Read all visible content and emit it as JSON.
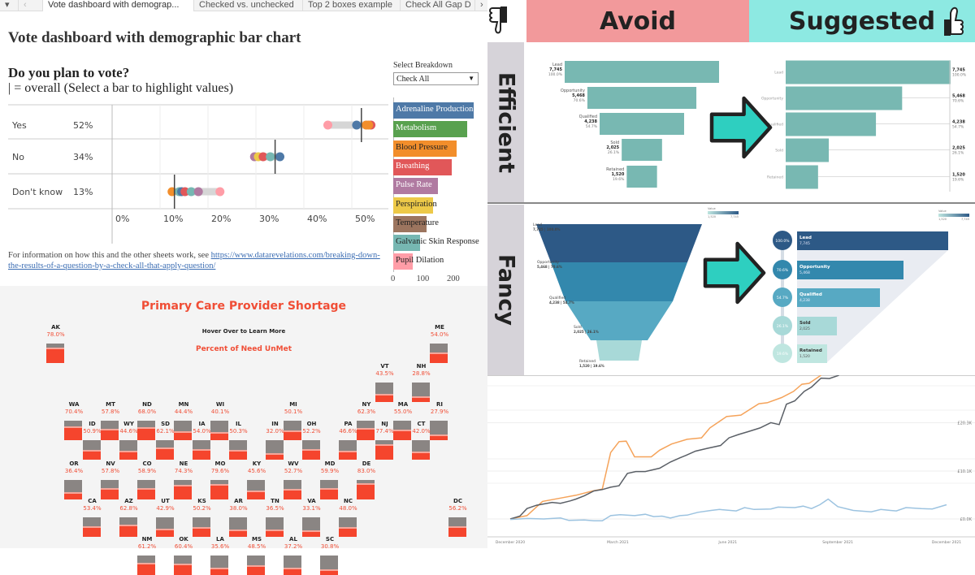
{
  "tabs": {
    "items": [
      "Vote dashboard with demograp...",
      "Checked vs. unchecked",
      "Top 2 boxes example",
      "Check All Gap D"
    ],
    "active": 0
  },
  "dashboard": {
    "title": "Vote dashboard with demographic bar chart",
    "question": "Do you plan to vote?",
    "subtitle": "| = overall (Select a bar to highlight values)",
    "select_label": "Select Breakdown",
    "select_value": "Check All",
    "footnote_text": "For information on how this and the other sheets work, see ",
    "footnote_link": "https://www.datarevelations.com/breaking-down-the-results-of-a-question-by-a-check-all-that-apply-question/"
  },
  "chart_data": [
    {
      "type": "scatter",
      "title": "Do you plan to vote?",
      "x_ticks": [
        "0%",
        "10%",
        "20%",
        "30%",
        "40%",
        "50%"
      ],
      "xlim": [
        0,
        57
      ],
      "categories": [
        "Yes",
        "No",
        "Don't know"
      ],
      "overall_labels": [
        "52%",
        "34%",
        "13%"
      ],
      "overall": [
        52,
        34,
        13
      ],
      "points": [
        [
          {
            "c": "#ff9da7",
            "v": 45
          },
          {
            "c": "#4e79a7",
            "v": 51
          },
          {
            "c": "#f28e2b",
            "v": 53
          },
          {
            "c": "#e15759",
            "v": 54
          },
          {
            "c": "#f28e2b",
            "v": 53.5
          }
        ],
        [
          {
            "c": "#b07aa1",
            "v": 29.7
          },
          {
            "c": "#edc948",
            "v": 30.5
          },
          {
            "c": "#e15759",
            "v": 31.5
          },
          {
            "c": "#76b7b2",
            "v": 33
          },
          {
            "c": "#4e79a7",
            "v": 35
          }
        ],
        [
          {
            "c": "#f28e2b",
            "v": 12.5
          },
          {
            "c": "#76b7b2",
            "v": 14
          },
          {
            "c": "#4e79a7",
            "v": 14.5
          },
          {
            "c": "#e15759",
            "v": 15.2
          },
          {
            "c": "#76b7b2",
            "v": 16.5
          },
          {
            "c": "#b07aa1",
            "v": 18
          },
          {
            "c": "#ff9da7",
            "v": 22.5
          }
        ]
      ]
    },
    {
      "type": "bar",
      "orientation": "horizontal",
      "categories": [
        "Adrenaline Production",
        "Metabolism",
        "Blood Pressure",
        "Breathing",
        "Pulse Rate",
        "Perspiration",
        "Temperature",
        "Galvanic Skin Response",
        "Pupil Dilation"
      ],
      "values": [
        265,
        243,
        208,
        192,
        147,
        130,
        110,
        88,
        65
      ],
      "colors": [
        "#4e79a7",
        "#59a14f",
        "#f28e2b",
        "#e15759",
        "#b07aa1",
        "#edc948",
        "#9c755f",
        "#76b7b2",
        "#ff9da7"
      ],
      "label_colors": [
        "#fff",
        "#fff",
        "#222",
        "#fff",
        "#fff",
        "#222",
        "#222",
        "#222",
        "#222"
      ],
      "x_ticks": [
        "0",
        "100",
        "200"
      ],
      "xlim": [
        0,
        300
      ]
    },
    {
      "type": "line",
      "y_ticks": [
        "£0.0K",
        "£10.1K",
        "£20.3K"
      ],
      "y_tick_values": [
        0,
        10.1,
        20.3
      ],
      "x_ticks": [
        "December 2020",
        "March 2021",
        "June 2021",
        "September 2021",
        "December 2021"
      ],
      "x_tick_dates": [
        "2020-12-01",
        "2021-03-01",
        "2021-06-01",
        "2021-09-01",
        "2021-12-01"
      ],
      "ylim": [
        -1,
        30
      ],
      "series": [
        {
          "color": "#f5a35a",
          "points": [
            [
              "2020-12-01",
              0
            ],
            [
              "2020-12-15",
              0.7
            ],
            [
              "2020-12-28",
              3.7
            ],
            [
              "2021-01-12",
              4.4
            ],
            [
              "2021-01-25",
              5.0
            ],
            [
              "2021-02-08",
              5.9
            ],
            [
              "2021-02-16",
              6.3
            ],
            [
              "2021-02-23",
              14.0
            ],
            [
              "2021-03-02",
              16.3
            ],
            [
              "2021-03-08",
              16.4
            ],
            [
              "2021-03-15",
              13.1
            ],
            [
              "2021-03-29",
              13.1
            ],
            [
              "2021-04-05",
              14.5
            ],
            [
              "2021-04-15",
              15.8
            ],
            [
              "2021-04-28",
              16.8
            ],
            [
              "2021-05-10",
              17.1
            ],
            [
              "2021-05-17",
              19.2
            ],
            [
              "2021-05-31",
              21.6
            ],
            [
              "2021-06-12",
              21.9
            ],
            [
              "2021-06-27",
              24.3
            ],
            [
              "2021-07-04",
              24.5
            ],
            [
              "2021-07-16",
              25.6
            ],
            [
              "2021-07-26",
              26.9
            ],
            [
              "2021-08-02",
              28.4
            ],
            [
              "2021-08-08",
              28.6
            ],
            [
              "2021-08-18",
              30.6
            ]
          ]
        },
        {
          "color": "#5a5f66",
          "points": [
            [
              "2020-12-01",
              0
            ],
            [
              "2020-12-09",
              0.6
            ],
            [
              "2020-12-15",
              2.2
            ],
            [
              "2020-12-23",
              2.9
            ],
            [
              "2021-01-05",
              3.5
            ],
            [
              "2021-01-12",
              3.3
            ],
            [
              "2021-01-20",
              3.8
            ],
            [
              "2021-01-25",
              4.2
            ],
            [
              "2021-02-01",
              4.9
            ],
            [
              "2021-02-09",
              5.9
            ],
            [
              "2021-02-16",
              6.2
            ],
            [
              "2021-02-23",
              6.7
            ],
            [
              "2021-03-02",
              7.0
            ],
            [
              "2021-03-09",
              9.6
            ],
            [
              "2021-03-16",
              10.0
            ],
            [
              "2021-03-24",
              10.0
            ],
            [
              "2021-04-05",
              10.7
            ],
            [
              "2021-04-14",
              12.0
            ],
            [
              "2021-04-22",
              12.9
            ],
            [
              "2021-04-27",
              13.4
            ],
            [
              "2021-05-05",
              14.3
            ],
            [
              "2021-05-15",
              14.9
            ],
            [
              "2021-05-26",
              15.5
            ],
            [
              "2021-06-02",
              17.1
            ],
            [
              "2021-06-10",
              17.8
            ],
            [
              "2021-06-18",
              18.4
            ],
            [
              "2021-06-28",
              19.2
            ],
            [
              "2021-07-07",
              20.3
            ],
            [
              "2021-07-14",
              19.9
            ],
            [
              "2021-07-20",
              24.2
            ],
            [
              "2021-07-27",
              24.9
            ],
            [
              "2021-08-04",
              26.9
            ],
            [
              "2021-08-10",
              27.8
            ],
            [
              "2021-08-18",
              29.7
            ],
            [
              "2021-08-25",
              29.6
            ],
            [
              "2021-09-02",
              30.6
            ]
          ]
        },
        {
          "color": "#9cc3e0",
          "points": [
            [
              "2020-12-01",
              -0.1
            ],
            [
              "2020-12-15",
              0.1
            ],
            [
              "2020-12-29",
              0
            ],
            [
              "2021-01-12",
              0.2
            ],
            [
              "2021-01-19",
              -0.3
            ],
            [
              "2021-02-01",
              -0.2
            ],
            [
              "2021-02-09",
              -0.4
            ],
            [
              "2021-02-16",
              -0.4
            ],
            [
              "2021-02-23",
              0.7
            ],
            [
              "2021-03-03",
              0.9
            ],
            [
              "2021-03-15",
              0.7
            ],
            [
              "2021-03-24",
              1.0
            ],
            [
              "2021-03-31",
              0.5
            ],
            [
              "2021-04-07",
              0.6
            ],
            [
              "2021-04-14",
              0.2
            ],
            [
              "2021-04-22",
              0.7
            ],
            [
              "2021-04-28",
              0.8
            ],
            [
              "2021-05-07",
              1.4
            ],
            [
              "2021-05-18",
              1.8
            ],
            [
              "2021-05-25",
              2.0
            ],
            [
              "2021-06-08",
              1.7
            ],
            [
              "2021-06-15",
              2.4
            ],
            [
              "2021-06-23",
              2.0
            ],
            [
              "2021-07-07",
              2.1
            ],
            [
              "2021-07-13",
              2.5
            ],
            [
              "2021-07-27",
              2.4
            ],
            [
              "2021-08-03",
              2.7
            ],
            [
              "2021-08-10",
              2.2
            ],
            [
              "2021-08-17",
              3.0
            ],
            [
              "2021-08-24",
              4.2
            ],
            [
              "2021-09-01",
              2.6
            ],
            [
              "2021-09-14",
              1.8
            ],
            [
              "2021-09-29",
              1.5
            ],
            [
              "2021-10-07",
              2.0
            ],
            [
              "2021-10-15",
              1.8
            ],
            [
              "2021-10-20",
              1.7
            ],
            [
              "2021-10-28",
              2.4
            ],
            [
              "2021-11-10",
              2.2
            ],
            [
              "2021-11-19",
              2.1
            ],
            [
              "2021-12-01",
              3.0
            ]
          ]
        }
      ]
    }
  ],
  "map": {
    "title": "Primary Care Provider Shortage",
    "hover": "Hover Over to Learn More",
    "subtitle": "Percent of Need UnMet",
    "rows": [
      {
        "items": [
          [
            "AK",
            "78.0%",
            78.0
          ]
        ],
        "cols": [
          -0.5
        ]
      },
      {
        "items": [
          [
            "ME",
            "54.0%",
            54.0
          ]
        ],
        "cols": [
          10
        ]
      },
      {
        "items": [
          [
            "VT",
            "43.5%",
            43.5
          ],
          [
            "NH",
            "28.8%",
            28.8
          ]
        ],
        "cols": [
          8.5,
          9.5
        ]
      },
      {
        "items": [
          [
            "WA",
            "70.4%",
            70.4
          ],
          [
            "MT",
            "57.8%",
            57.8
          ],
          [
            "ND",
            "68.0%",
            68.0
          ],
          [
            "MN",
            "44.4%",
            44.4
          ],
          [
            "WI",
            "40.1%",
            40.1
          ],
          [
            "MI",
            "50.1%",
            50.1
          ],
          [
            "NY",
            "62.3%",
            62.3
          ],
          [
            "MA",
            "55.0%",
            55.0
          ],
          [
            "RI",
            "27.9%",
            27.9
          ]
        ],
        "cols": [
          0,
          1,
          2,
          3,
          4,
          6,
          8,
          9,
          10
        ]
      },
      {
        "items": [
          [
            "ID",
            "50.9%",
            50.9
          ],
          [
            "WY",
            "44.6%",
            44.6
          ],
          [
            "SD",
            "62.1%",
            62.1
          ],
          [
            "IA",
            "54.0%",
            54.0
          ],
          [
            "IL",
            "50.3%",
            50.3
          ],
          [
            "IN",
            "32.0%",
            32.0
          ],
          [
            "OH",
            "52.2%",
            52.2
          ],
          [
            "PA",
            "46.6%",
            46.6
          ],
          [
            "NJ",
            "77.4%",
            77.4
          ],
          [
            "CT",
            "42.0%",
            42.0
          ]
        ],
        "cols": [
          0.5,
          1.5,
          2.5,
          3.5,
          4.5,
          5.5,
          6.5,
          7.5,
          8.5,
          9.5
        ]
      },
      {
        "items": [
          [
            "OR",
            "36.4%",
            36.4
          ],
          [
            "NV",
            "57.8%",
            57.8
          ],
          [
            "CO",
            "58.9%",
            58.9
          ],
          [
            "NE",
            "74.3%",
            74.3
          ],
          [
            "MO",
            "79.6%",
            79.6
          ],
          [
            "KY",
            "45.6%",
            45.6
          ],
          [
            "WV",
            "52.7%",
            52.7
          ],
          [
            "MD",
            "59.9%",
            59.9
          ],
          [
            "DE",
            "83.0%",
            83.0
          ]
        ],
        "cols": [
          0,
          1,
          2,
          3,
          4,
          5,
          6,
          7,
          8
        ]
      },
      {
        "items": [
          [
            "CA",
            "53.4%",
            53.4
          ],
          [
            "AZ",
            "62.8%",
            62.8
          ],
          [
            "UT",
            "42.9%",
            42.9
          ],
          [
            "KS",
            "50.2%",
            50.2
          ],
          [
            "AR",
            "38.0%",
            38.0
          ],
          [
            "TN",
            "36.5%",
            36.5
          ],
          [
            "VA",
            "33.1%",
            33.1
          ],
          [
            "NC",
            "48.0%",
            48.0
          ],
          [
            "DC",
            "56.2%",
            56.2
          ]
        ],
        "cols": [
          0.5,
          1.5,
          2.5,
          3.5,
          4.5,
          5.5,
          6.5,
          7.5,
          10.5
        ]
      },
      {
        "items": [
          [
            "NM",
            "61.2%",
            61.2
          ],
          [
            "OK",
            "60.4%",
            60.4
          ],
          [
            "LA",
            "35.6%",
            35.6
          ],
          [
            "MS",
            "48.5%",
            48.5
          ],
          [
            "AL",
            "37.2%",
            37.2
          ],
          [
            "SC",
            "30.8%",
            30.8
          ]
        ],
        "cols": [
          2,
          3,
          4,
          5,
          6,
          7
        ]
      }
    ]
  },
  "comparison": {
    "avoid": "Avoid",
    "suggested": "Suggested",
    "efficient": "Efficient",
    "fancy": "Fancy",
    "thumbs_down_icon": "thumbs-down-icon",
    "thumbs_up_icon": "thumbs-up-icon",
    "arrow_color": "#2ecfc0",
    "funnel": [
      {
        "stage": "Lead",
        "value": "7,745",
        "pct": "100.0%",
        "n": 7745
      },
      {
        "stage": "Opportunity",
        "value": "5,468",
        "pct": "70.6%",
        "n": 5468
      },
      {
        "stage": "Qualified",
        "value": "4,238",
        "pct": "54.7%",
        "n": 4238
      },
      {
        "stage": "Sold",
        "value": "2,025",
        "pct": "26.1%",
        "n": 2025
      },
      {
        "stage": "Retained",
        "value": "1,520",
        "pct": "19.6%",
        "n": 1520
      }
    ],
    "legend": {
      "title": "Value",
      "min": "1,520",
      "max": "7,745"
    },
    "fancy_colors": [
      "#2d5986",
      "#3388ad",
      "#57a9c3",
      "#a8d9d8",
      "#bfe6e0"
    ]
  }
}
